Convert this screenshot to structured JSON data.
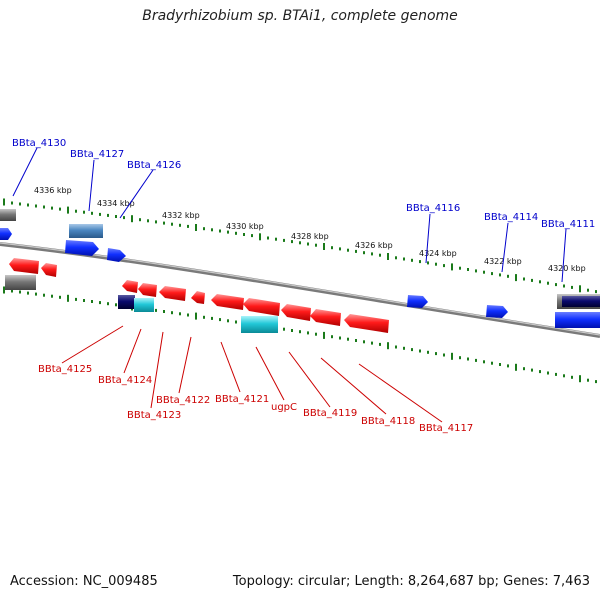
{
  "title": "Bradyrhizobium sp. BTAi1, complete genome",
  "accession": "Accession: NC_009485",
  "summary": "Topology: circular; Length: 8,264,687 bp; Genes: 7,463",
  "colors": {
    "forward_label": "#0000cc",
    "reverse_label": "#cc0000",
    "backbone": "#888888",
    "tick": "#1a7a1a",
    "gene_forward": "#0a2bff",
    "gene_reverse": "#ff1a1a",
    "gene_navy": "#0a0a6e",
    "gene_cyan": "#22c8d8",
    "gene_steel": "#4a86c0",
    "gene_gray": "#777777"
  },
  "kbp_labels": [
    "4336 kbp",
    "4334 kbp",
    "4332 kbp",
    "4330 kbp",
    "4328 kbp",
    "4326 kbp",
    "4324 kbp",
    "4322 kbp",
    "4320 kbp"
  ],
  "forward_gene_labels": [
    "BBta_4130",
    "BBta_4127",
    "BBta_4126",
    "BBta_4116",
    "BBta_4114",
    "BBta_4111"
  ],
  "reverse_gene_labels": [
    "BBta_4125",
    "BBta_4124",
    "BBta_4123",
    "BBta_4122",
    "BBta_4121",
    "ugpC",
    "BBta_4119",
    "BBta_4118",
    "BBta_4117"
  ]
}
